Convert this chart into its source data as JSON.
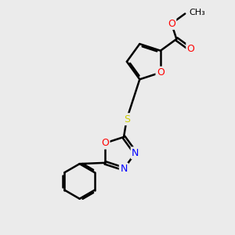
{
  "background_color": "#ebebeb",
  "bond_color": "#000000",
  "atom_colors": {
    "O": "#ff0000",
    "N": "#0000ff",
    "S": "#cccc00",
    "C": "#000000"
  },
  "bond_width": 1.8,
  "dbo": 0.07,
  "figsize": [
    3.0,
    3.0
  ],
  "dpi": 100
}
